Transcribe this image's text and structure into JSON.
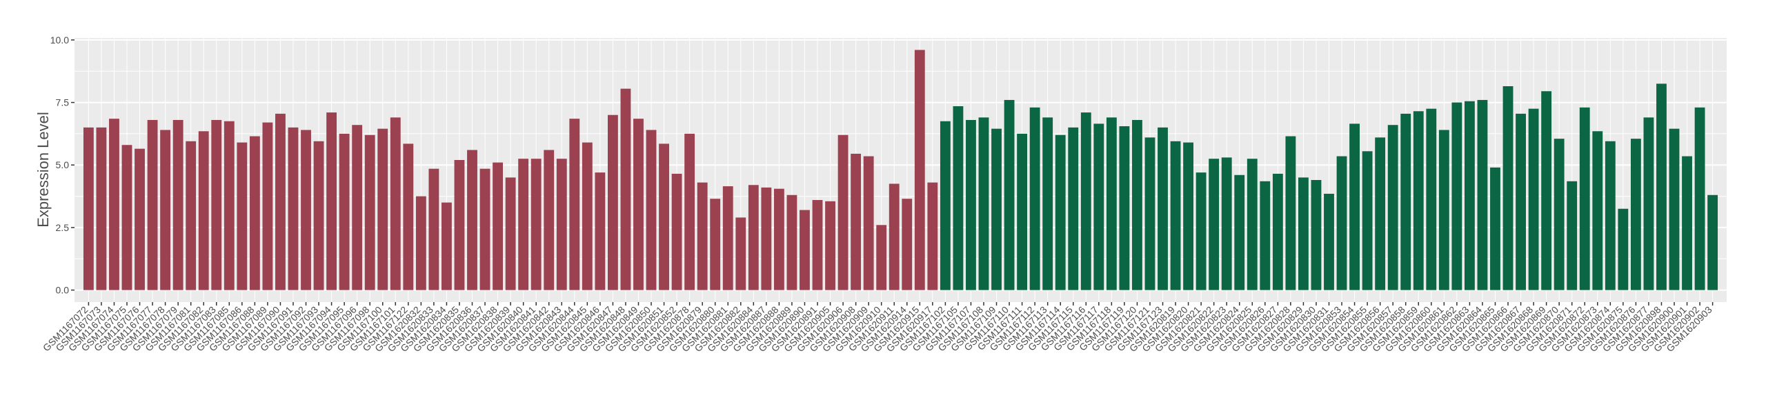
{
  "chart_data": {
    "type": "bar",
    "y_label": "Expression Level",
    "categories": [
      "GSM1167072",
      "GSM1167073",
      "GSM1167074",
      "GSM1167075",
      "GSM1167076",
      "GSM1167077",
      "GSM1167078",
      "GSM1167079",
      "GSM1167081",
      "GSM1167082",
      "GSM1167083",
      "GSM1167085",
      "GSM1167086",
      "GSM1167088",
      "GSM1167089",
      "GSM1167090",
      "GSM1167091",
      "GSM1167092",
      "GSM1167093",
      "GSM1167094",
      "GSM1167095",
      "GSM1167096",
      "GSM1167098",
      "GSM1167100",
      "GSM1167101",
      "GSM1167122",
      "GSM1620832",
      "GSM1620833",
      "GSM1620834",
      "GSM1620835",
      "GSM1620836",
      "GSM1620837",
      "GSM1620838",
      "GSM1620839",
      "GSM1620840",
      "GSM1620841",
      "GSM1620842",
      "GSM1620843",
      "GSM1620844",
      "GSM1620845",
      "GSM1620846",
      "GSM1620847",
      "GSM1620848",
      "GSM1620849",
      "GSM1620850",
      "GSM1620851",
      "GSM1620852",
      "GSM1620878",
      "GSM1620879",
      "GSM1620880",
      "GSM1620881",
      "GSM1620882",
      "GSM1620884",
      "GSM1620887",
      "GSM1620888",
      "GSM1620889",
      "GSM1620890",
      "GSM1620891",
      "GSM1620905",
      "GSM1620906",
      "GSM1620908",
      "GSM1620909",
      "GSM1620910",
      "GSM1620911",
      "GSM1620914",
      "GSM1620915",
      "GSM1620917",
      "GSM1167102",
      "GSM1167105",
      "GSM1167107",
      "GSM1167108",
      "GSM1167109",
      "GSM1167110",
      "GSM1167111",
      "GSM1167112",
      "GSM1167113",
      "GSM1167114",
      "GSM1167115",
      "GSM1167116",
      "GSM1167117",
      "GSM1167118",
      "GSM1167119",
      "GSM1167120",
      "GSM1167121",
      "GSM1167123",
      "GSM1620819",
      "GSM1620820",
      "GSM1620821",
      "GSM1620822",
      "GSM1620823",
      "GSM1620824",
      "GSM1620825",
      "GSM1620826",
      "GSM1620827",
      "GSM1620828",
      "GSM1620829",
      "GSM1620830",
      "GSM1620831",
      "GSM1620853",
      "GSM1620854",
      "GSM1620855",
      "GSM1620856",
      "GSM1620857",
      "GSM1620858",
      "GSM1620859",
      "GSM1620860",
      "GSM1620861",
      "GSM1620862",
      "GSM1620863",
      "GSM1620864",
      "GSM1620865",
      "GSM1620866",
      "GSM1620867",
      "GSM1620868",
      "GSM1620869",
      "GSM1620870",
      "GSM1620871",
      "GSM1620872",
      "GSM1620873",
      "GSM1620874",
      "GSM1620875",
      "GSM1620876",
      "GSM1620877",
      "GSM1620898",
      "GSM1620900",
      "GSM1620901",
      "GSM1620902",
      "GSM1620903"
    ],
    "values": [
      6.5,
      6.5,
      6.85,
      5.8,
      5.65,
      6.8,
      6.4,
      6.8,
      5.95,
      6.35,
      6.8,
      6.75,
      5.9,
      6.15,
      6.7,
      7.05,
      6.5,
      6.4,
      5.95,
      7.1,
      6.25,
      6.6,
      6.2,
      6.45,
      6.9,
      5.85,
      3.75,
      4.85,
      3.5,
      5.2,
      5.6,
      4.85,
      5.1,
      4.5,
      5.25,
      5.25,
      5.6,
      5.25,
      6.85,
      5.9,
      4.7,
      7.0,
      8.05,
      6.85,
      6.4,
      5.85,
      4.65,
      6.25,
      4.3,
      3.65,
      4.15,
      2.9,
      4.2,
      4.1,
      4.05,
      3.8,
      3.2,
      3.6,
      3.55,
      6.2,
      5.45,
      5.35,
      2.6,
      4.25,
      3.65,
      9.6,
      4.3,
      6.75,
      7.35,
      6.8,
      6.9,
      6.45,
      7.6,
      6.25,
      7.3,
      6.9,
      6.2,
      6.5,
      7.1,
      6.65,
      6.9,
      6.55,
      6.8,
      6.1,
      6.5,
      5.95,
      5.9,
      4.7,
      5.25,
      5.3,
      4.6,
      5.25,
      4.35,
      4.65,
      6.15,
      4.5,
      4.4,
      3.85,
      5.35,
      6.65,
      5.55,
      6.1,
      6.6,
      7.05,
      7.15,
      7.25,
      6.4,
      7.5,
      7.55,
      7.6,
      4.9,
      8.15,
      7.05,
      7.25,
      7.95,
      6.05,
      4.35,
      7.3,
      6.35,
      5.95,
      3.25,
      6.05,
      6.9,
      8.25,
      6.45,
      5.35,
      7.3,
      3.8
    ],
    "group_sizes": [
      67,
      61
    ],
    "group_colors": [
      "#9b4150",
      "#0b6644"
    ],
    "ylim": [
      -0.48,
      10.08
    ],
    "yticks": [
      {
        "value": 0,
        "label": "0.0"
      },
      2.5,
      {
        "value": 5,
        "label": "5.0"
      },
      7.5,
      {
        "value": 10,
        "label": "10.0"
      }
    ],
    "grid": true
  }
}
